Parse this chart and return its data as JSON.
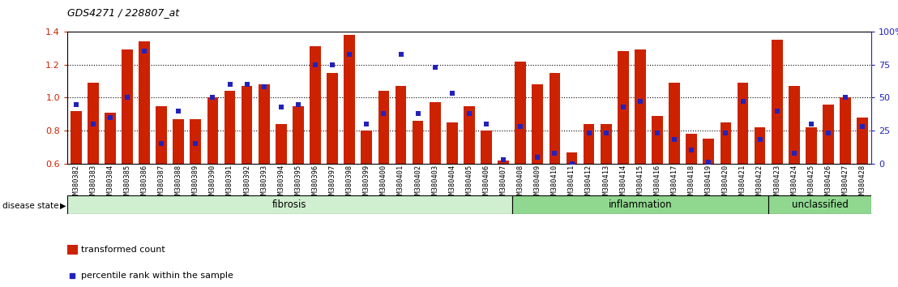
{
  "title": "GDS4271 / 228807_at",
  "samples": [
    "GSM380382",
    "GSM380383",
    "GSM380384",
    "GSM380385",
    "GSM380386",
    "GSM380387",
    "GSM380388",
    "GSM380389",
    "GSM380390",
    "GSM380391",
    "GSM380392",
    "GSM380393",
    "GSM380394",
    "GSM380395",
    "GSM380396",
    "GSM380397",
    "GSM380398",
    "GSM380399",
    "GSM380400",
    "GSM380401",
    "GSM380402",
    "GSM380403",
    "GSM380404",
    "GSM380405",
    "GSM380406",
    "GSM380407",
    "GSM380408",
    "GSM380409",
    "GSM380410",
    "GSM380411",
    "GSM380412",
    "GSM380413",
    "GSM380414",
    "GSM380415",
    "GSM380416",
    "GSM380417",
    "GSM380418",
    "GSM380419",
    "GSM380420",
    "GSM380421",
    "GSM380422",
    "GSM380423",
    "GSM380424",
    "GSM380425",
    "GSM380426",
    "GSM380427",
    "GSM380428"
  ],
  "bar_values": [
    0.92,
    1.09,
    0.91,
    1.29,
    1.34,
    0.95,
    0.87,
    0.87,
    1.0,
    1.04,
    1.07,
    1.08,
    0.84,
    0.95,
    1.31,
    1.15,
    1.38,
    0.8,
    1.04,
    1.07,
    0.86,
    0.97,
    0.85,
    0.95,
    0.8,
    0.62,
    1.22,
    1.08,
    1.15,
    0.67,
    0.84,
    0.84,
    1.28,
    1.29,
    0.89,
    1.09,
    0.78,
    0.75,
    0.85,
    1.09,
    0.82,
    1.35,
    1.07,
    0.82,
    0.96,
    1.0,
    0.88
  ],
  "percentile_raw": [
    45,
    30,
    35,
    50,
    85,
    15,
    40,
    15,
    50,
    60,
    60,
    58,
    43,
    45,
    75,
    75,
    83,
    30,
    38,
    83,
    38,
    73,
    53,
    38,
    30,
    3,
    28,
    5,
    8,
    0,
    23,
    23,
    43,
    47,
    23,
    18,
    10,
    1,
    23,
    47,
    18,
    40,
    8,
    30,
    23,
    50,
    28
  ],
  "groups": [
    {
      "label": "fibrosis",
      "start": 0,
      "end": 26
    },
    {
      "label": "inflammation",
      "start": 26,
      "end": 41
    },
    {
      "label": "unclassified",
      "start": 41,
      "end": 47
    }
  ],
  "group_colors": [
    "#d0efd0",
    "#90d890",
    "#90d890"
  ],
  "ylim_left": [
    0.6,
    1.4
  ],
  "ylim_right": [
    0,
    100
  ],
  "bar_color": "#cc2200",
  "dot_color": "#2222bb",
  "ylabel_left_color": "#cc2200",
  "ylabel_right_color": "#2222bb",
  "yticks_left": [
    0.6,
    0.8,
    1.0,
    1.2,
    1.4
  ],
  "yticks_right": [
    0,
    25,
    50,
    75,
    100
  ],
  "dotted_lines": [
    0.8,
    1.0,
    1.2
  ],
  "legend_items": [
    "transformed count",
    "percentile rank within the sample"
  ],
  "disease_state_label": "disease state"
}
